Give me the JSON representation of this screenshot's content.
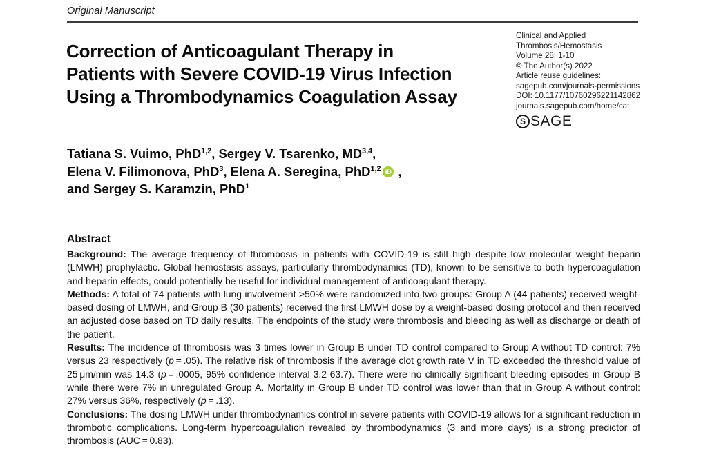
{
  "page": {
    "section_label": "Original Manuscript"
  },
  "journal": {
    "lines": [
      "Clinical and Applied",
      "Thrombosis/Hemostasis",
      "Volume 28: 1-10",
      "© The Author(s) 2022",
      "Article reuse guidelines:",
      "sagepub.com/journals-permissions",
      "DOI: 10.1177/10760296221142862",
      "journals.sagepub.com/home/cat"
    ],
    "logo_mark": "S",
    "logo_text": "SAGE"
  },
  "article": {
    "title_lines": [
      "Correction of Anticoagulant Therapy in",
      "Patients with Severe COVID-19 Virus Infection",
      "Using a Thrombodynamics Coagulation Assay"
    ],
    "author_lines": [
      [
        {
          "t": "Tatiana S. Vuimo, PhD"
        },
        {
          "sup": "1,2"
        },
        {
          "t": ", Sergey V. Tsarenko, MD"
        },
        {
          "sup": "3,4"
        },
        {
          "t": ","
        }
      ],
      [
        {
          "t": "Elena V. Filimonova, PhD"
        },
        {
          "sup": "3"
        },
        {
          "t": ", Elena A. Seregina, PhD"
        },
        {
          "sup": "1,2"
        },
        {
          "icon": "orcid",
          "label": "iD"
        },
        {
          "t": " ,"
        }
      ],
      [
        {
          "t": "and Sergey S. Karamzin, PhD"
        },
        {
          "sup": "1"
        }
      ]
    ]
  },
  "abstract": {
    "heading": "Abstract",
    "paragraphs": [
      {
        "segments": [
          {
            "b": "Background:"
          },
          {
            "t": " The average frequency of thrombosis in patients with COVID-19 is still high despite low molecular weight heparin (LMWH) prophylactic. Global hemostasis assays, particularly thrombodynamics (TD), known to be sensitive to both hypercoagulation and heparin effects, could potentially be useful for individual management of anticoagulant therapy."
          }
        ]
      },
      {
        "segments": [
          {
            "b": "Methods:"
          },
          {
            "t": " A total of 74 patients with lung involvement >50% were randomized into two groups: Group A (44 patients) received weight-based dosing of LMWH, and Group B (30 patients) received the first LMWH dose by a weight-based dosing protocol and then received an adjusted dose based on TD daily results. The endpoints of the study were thrombosis and bleeding as well as discharge or death of the patient."
          }
        ]
      },
      {
        "segments": [
          {
            "b": "Results:"
          },
          {
            "t": " The incidence of thrombosis was 3 times lower in Group B under TD control compared to Group A without TD control: 7% versus 23 respectively ("
          },
          {
            "i": "p"
          },
          {
            "t": " = .05). The relative risk of thrombosis if the average clot growth rate V in TD exceeded the threshold value of 25 μm/min was 14.3 ("
          },
          {
            "i": "p"
          },
          {
            "t": " = .0005, 95% confidence interval 3.2-63.7). There were no clinically significant bleeding episodes in Group B while there were 7% in unregulated Group A. Mortality in Group B under TD control was lower than that in Group A without control: 27% versus 36%, respectively ("
          },
          {
            "i": "p"
          },
          {
            "t": " = .13)."
          }
        ]
      },
      {
        "segments": [
          {
            "b": "Conclusions:"
          },
          {
            "t": " The dosing LMWH under thrombodynamics control in severe patients with COVID-19 allows for a significant reduction in thrombotic complications. Long-term hypercoagulation revealed by thrombodynamics (3 and more days) is a strong predictor of thrombosis (AUC = 0.83)."
          }
        ]
      }
    ]
  },
  "colors": {
    "orcid_green": "#A6CE39",
    "rule": "#3c3c3c",
    "text": "#1a1a1a"
  }
}
